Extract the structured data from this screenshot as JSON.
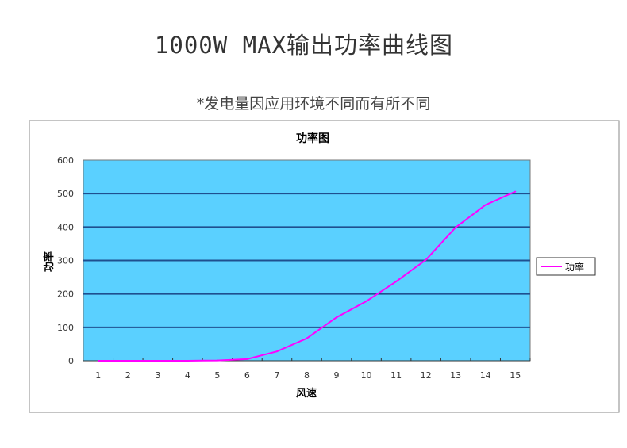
{
  "header": {
    "title": "1000W MAX输出功率曲线图",
    "subtitle": "*发电量因应用环境不同而有所不同"
  },
  "chart_data": {
    "type": "line",
    "title": "功率图",
    "xlabel": "风速",
    "ylabel": "功率",
    "categories": [
      "1",
      "2",
      "3",
      "4",
      "5",
      "6",
      "7",
      "8",
      "9",
      "10",
      "11",
      "12",
      "13",
      "14",
      "15"
    ],
    "series": [
      {
        "name": "功率",
        "values": [
          0,
          0,
          0,
          0,
          1,
          5,
          28,
          67,
          130,
          178,
          237,
          302,
          399,
          466,
          506
        ],
        "color": "#ff00ff"
      }
    ],
    "ylim": [
      0,
      600
    ],
    "yticks": [
      0,
      100,
      200,
      300,
      400,
      500,
      600
    ],
    "grid": true,
    "plot_background": "#5ad0ff",
    "legend": "right"
  }
}
